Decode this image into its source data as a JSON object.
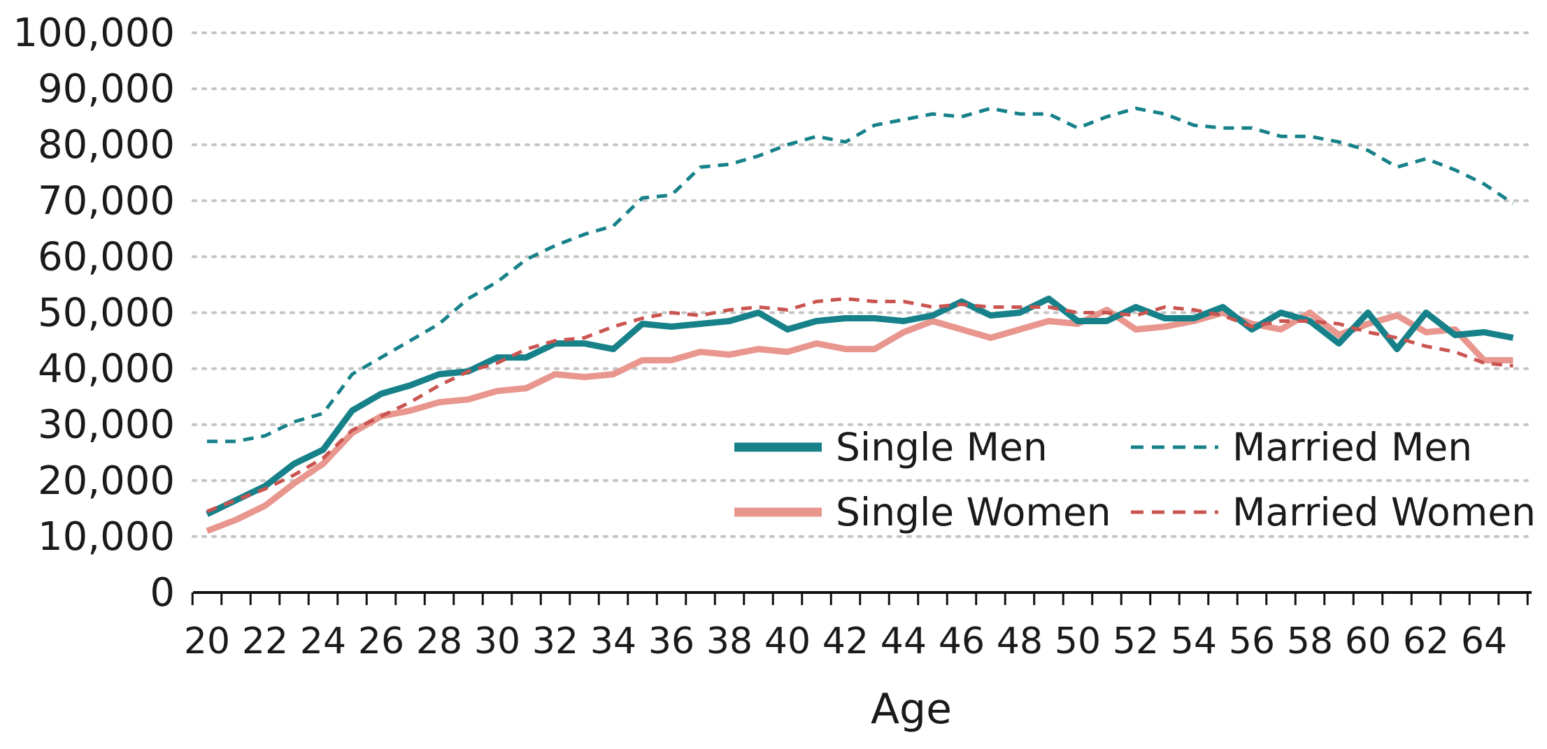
{
  "chart_data": {
    "type": "line",
    "title": "",
    "xlabel": "Age",
    "ylabel": "",
    "x": [
      20,
      21,
      22,
      23,
      24,
      25,
      26,
      27,
      28,
      29,
      30,
      31,
      32,
      33,
      34,
      35,
      36,
      37,
      38,
      39,
      40,
      41,
      42,
      43,
      44,
      45,
      46,
      47,
      48,
      49,
      50,
      51,
      52,
      53,
      54,
      55,
      56,
      57,
      58,
      59,
      60,
      61,
      62,
      63,
      64,
      65
    ],
    "xtick_labels": [
      "20",
      "22",
      "24",
      "26",
      "28",
      "30",
      "32",
      "34",
      "36",
      "38",
      "40",
      "42",
      "44",
      "46",
      "48",
      "50",
      "52",
      "54",
      "56",
      "58",
      "60",
      "62",
      "64"
    ],
    "ytick_labels": [
      "0",
      "10,000",
      "20,000",
      "30,000",
      "40,000",
      "50,000",
      "60,000",
      "70,000",
      "80,000",
      "90,000",
      "100,000"
    ],
    "ylim": [
      0,
      100000
    ],
    "xlim": [
      20,
      65
    ],
    "grid": "horizontal dotted",
    "legend_position": "bottom-right",
    "series": [
      {
        "name": "Single Men",
        "color": "#17818a",
        "style": "solid-thick",
        "values": [
          14000,
          16500,
          19000,
          23000,
          25500,
          32500,
          35500,
          37000,
          39000,
          39500,
          42000,
          42000,
          44500,
          44500,
          43500,
          48000,
          47500,
          48000,
          48500,
          50000,
          47000,
          48500,
          49000,
          49000,
          48500,
          49500,
          52000,
          49500,
          50000,
          52500,
          48500,
          48500,
          51000,
          49000,
          49000,
          51000,
          47000,
          50000,
          48500,
          44500,
          50000,
          43500,
          50000,
          46000,
          46500,
          45500
        ]
      },
      {
        "name": "Married Men",
        "color": "#17818a",
        "style": "dashed-thin",
        "values": [
          27000,
          27000,
          28000,
          30500,
          32000,
          39000,
          42000,
          45000,
          48000,
          52500,
          55500,
          59500,
          62000,
          64000,
          65500,
          70500,
          71000,
          76000,
          76500,
          78000,
          80000,
          81500,
          80500,
          83500,
          84500,
          85500,
          85000,
          86500,
          85500,
          85500,
          83000,
          85000,
          86500,
          85500,
          83500,
          83000,
          83000,
          81500,
          81500,
          80500,
          79000,
          76000,
          77500,
          75500,
          73000,
          69500
        ]
      },
      {
        "name": "Single Women",
        "color": "#e8968e",
        "style": "solid-thick",
        "values": [
          11000,
          13000,
          15500,
          19500,
          23000,
          28500,
          31500,
          32500,
          34000,
          34500,
          36000,
          36500,
          39000,
          38500,
          39000,
          41500,
          41500,
          43000,
          42500,
          43500,
          43000,
          44500,
          43500,
          43500,
          46500,
          48500,
          47000,
          45500,
          47000,
          48500,
          48000,
          50500,
          47000,
          47500,
          48500,
          50000,
          48000,
          47000,
          50000,
          46000,
          48000,
          49500,
          46500,
          47000,
          41500,
          41500
        ]
      },
      {
        "name": "Married Women",
        "color": "#c95450",
        "style": "dashed-thin",
        "values": [
          14500,
          16500,
          18500,
          21000,
          24000,
          29000,
          31500,
          34000,
          37000,
          39500,
          41000,
          43500,
          45000,
          45500,
          47500,
          49000,
          50000,
          49500,
          50500,
          51000,
          50500,
          52000,
          52500,
          52000,
          52000,
          51000,
          51500,
          51000,
          51000,
          51000,
          50000,
          50000,
          49500,
          51000,
          50500,
          49500,
          47500,
          48500,
          48500,
          48000,
          46500,
          45500,
          44000,
          43000,
          41000,
          40500
        ]
      }
    ]
  }
}
